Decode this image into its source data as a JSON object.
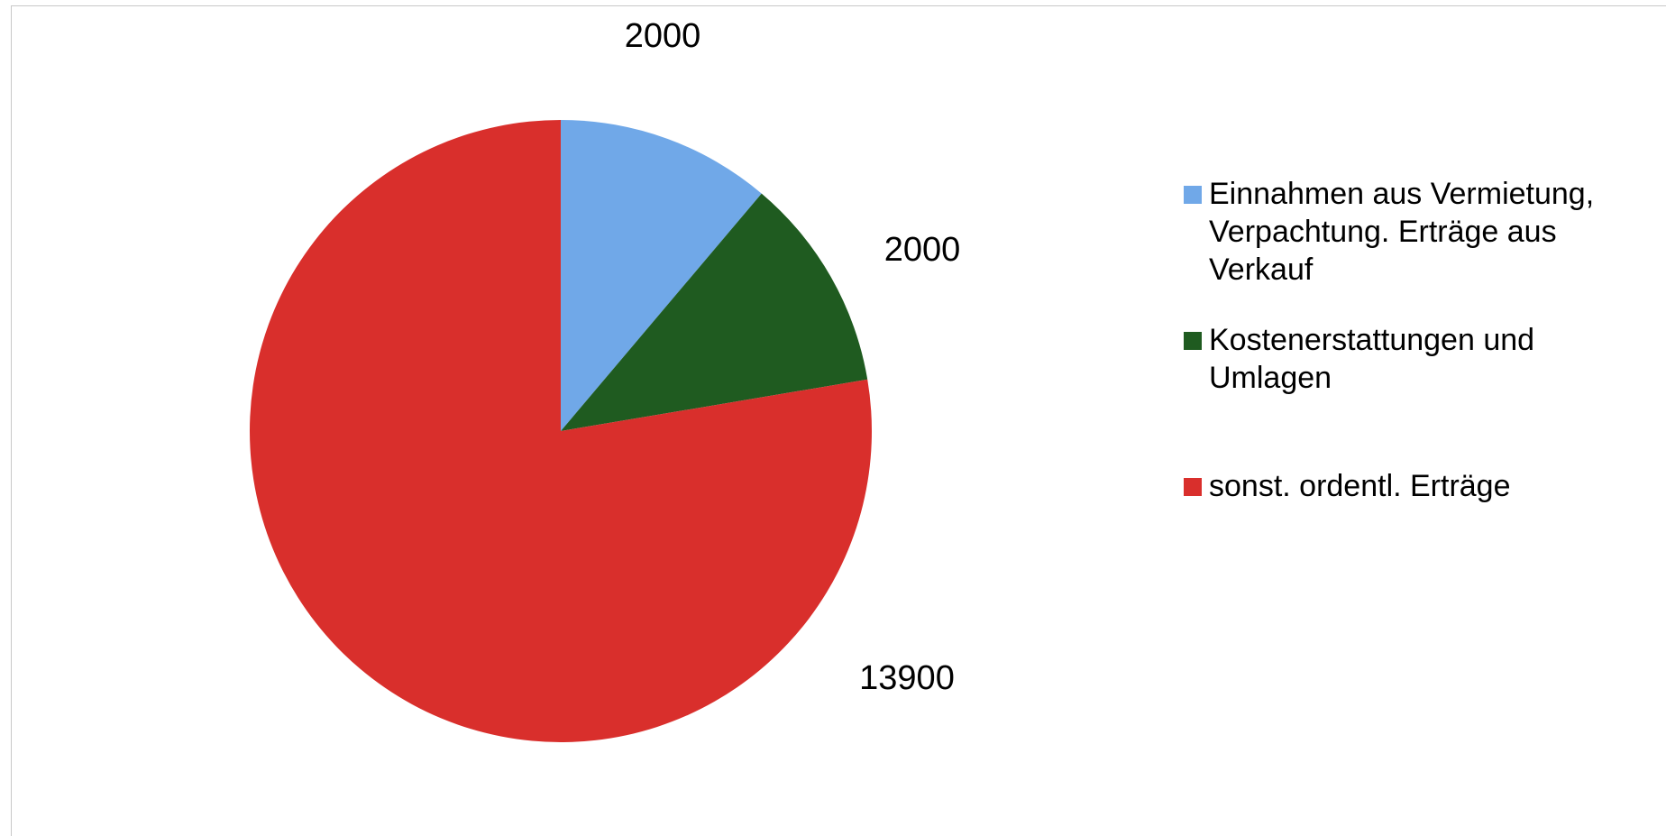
{
  "chart_data": {
    "type": "pie",
    "title": "",
    "slices": [
      {
        "label": "Einnahmen aus Vermietung, Verpachtung. Erträge aus Verkauf",
        "value": 2000,
        "color": "#70a8e8"
      },
      {
        "label": "Kostenerstattungen und Umlagen",
        "value": 2000,
        "color": "#1f5b20"
      },
      {
        "label": "sonst. ordentl. Erträge",
        "value": 13900,
        "color": "#d92f2c"
      }
    ],
    "data_labels": [
      "2000",
      "2000",
      "13900"
    ],
    "legend_position": "right",
    "start_angle": "12 o'clock",
    "direction": "clockwise"
  }
}
